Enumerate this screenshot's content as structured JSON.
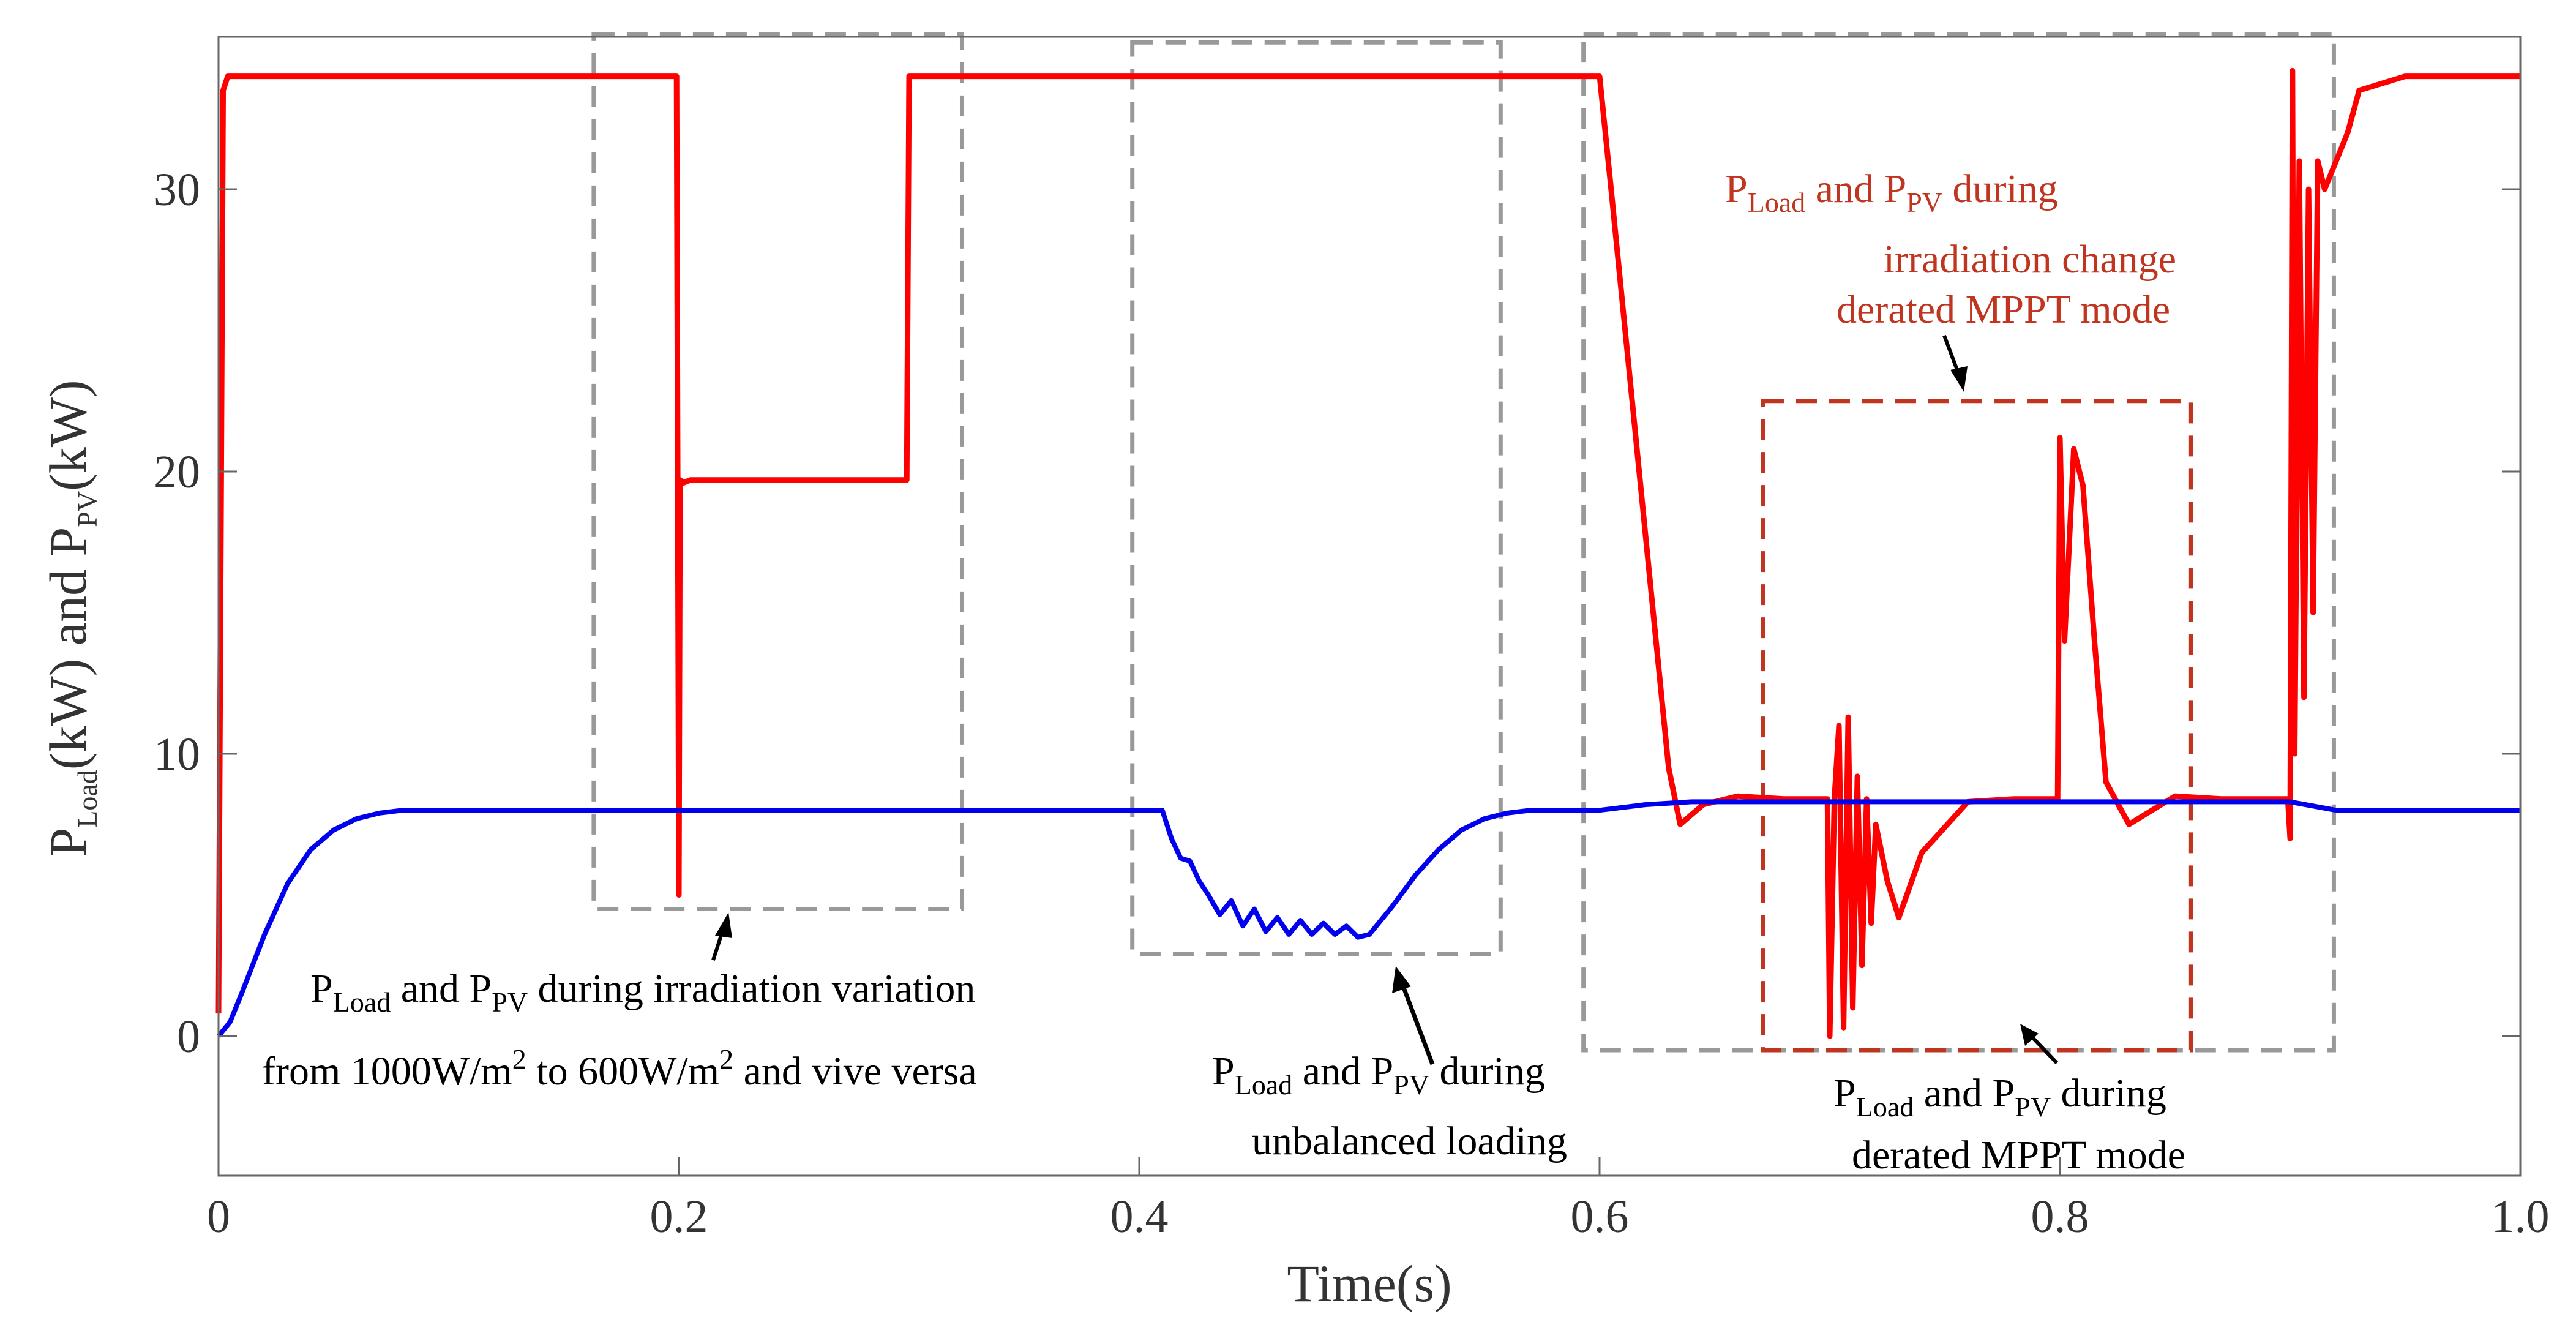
{
  "chart_data": {
    "type": "line",
    "title": "",
    "xlabel": "Time(s)",
    "ylabel": {
      "p1": "P",
      "s1": "Load",
      "m1": "(kW) and P",
      "s2": "PV",
      "m2": "(kW)"
    },
    "xlim": [
      0,
      1.0
    ],
    "ylim": [
      -5,
      34.5
    ],
    "xticks": [
      0,
      0.2,
      0.4,
      0.6,
      0.8,
      1.0
    ],
    "xtick_labels": [
      "0",
      "0.2",
      "0.4",
      "0.6",
      "0.8",
      "1.0"
    ],
    "yticks": [
      0,
      10,
      20,
      30
    ],
    "ytick_labels": [
      "0",
      "10",
      "20",
      "30"
    ],
    "grid": false,
    "series": [
      {
        "name": "P_PV",
        "color": "#ff0000",
        "x": [
          0,
          0.002,
          0.004,
          0.01,
          0.05,
          0.1,
          0.15,
          0.199,
          0.2,
          0.2005,
          0.202,
          0.205,
          0.25,
          0.299,
          0.3,
          0.35,
          0.4,
          0.45,
          0.5,
          0.55,
          0.599,
          0.6,
          0.605,
          0.63,
          0.635,
          0.645,
          0.66,
          0.68,
          0.699,
          0.7,
          0.702,
          0.704,
          0.706,
          0.708,
          0.71,
          0.712,
          0.714,
          0.716,
          0.718,
          0.72,
          0.725,
          0.73,
          0.74,
          0.76,
          0.78,
          0.799,
          0.8,
          0.802,
          0.806,
          0.81,
          0.815,
          0.82,
          0.83,
          0.84,
          0.85,
          0.87,
          0.899,
          0.9,
          0.901,
          0.902,
          0.904,
          0.906,
          0.908,
          0.91,
          0.912,
          0.915,
          0.92,
          0.925,
          0.93,
          0.95,
          1.0
        ],
        "values": [
          0.8,
          33.5,
          34.0,
          34.0,
          34.0,
          34.0,
          34.0,
          34.0,
          5.0,
          19.7,
          19.6,
          19.7,
          19.7,
          19.7,
          34.0,
          34.0,
          34.0,
          34.0,
          34.0,
          34.0,
          34.0,
          34.0,
          30.0,
          9.5,
          7.5,
          8.2,
          8.5,
          8.4,
          8.4,
          0,
          8.4,
          11.0,
          0.3,
          11.3,
          1.0,
          9.2,
          2.5,
          8.4,
          4.0,
          7.5,
          5.5,
          4.2,
          6.5,
          8.3,
          8.4,
          8.4,
          21.2,
          14.0,
          20.8,
          19.5,
          14.0,
          9.0,
          7.5,
          8.0,
          8.5,
          8.4,
          8.4,
          7.0,
          34.2,
          10.0,
          31.0,
          12.0,
          30.0,
          15.0,
          31.0,
          30.0,
          31.0,
          32.0,
          33.5,
          34.0,
          34.0
        ]
      },
      {
        "name": "P_Load",
        "color": "#0000ee",
        "x": [
          0,
          0.005,
          0.01,
          0.02,
          0.03,
          0.04,
          0.05,
          0.06,
          0.07,
          0.08,
          0.1,
          0.2,
          0.3,
          0.41,
          0.414,
          0.418,
          0.422,
          0.426,
          0.43,
          0.435,
          0.44,
          0.445,
          0.45,
          0.455,
          0.46,
          0.465,
          0.47,
          0.475,
          0.48,
          0.485,
          0.49,
          0.495,
          0.5,
          0.51,
          0.52,
          0.53,
          0.54,
          0.55,
          0.56,
          0.57,
          0.58,
          0.6,
          0.62,
          0.64,
          0.7,
          0.8,
          0.9,
          0.92,
          1.0
        ],
        "values": [
          0,
          0.5,
          1.5,
          3.6,
          5.4,
          6.6,
          7.3,
          7.7,
          7.9,
          8.0,
          8.0,
          8.0,
          8.0,
          8.0,
          7.0,
          6.3,
          6.2,
          5.5,
          5.0,
          4.3,
          4.8,
          3.9,
          4.5,
          3.7,
          4.2,
          3.6,
          4.1,
          3.6,
          4.0,
          3.6,
          3.9,
          3.5,
          3.6,
          4.6,
          5.7,
          6.6,
          7.3,
          7.7,
          7.9,
          8.0,
          8.0,
          8.0,
          8.2,
          8.3,
          8.3,
          8.3,
          8.3,
          8.0,
          8.0
        ]
      }
    ],
    "annotations": [
      {
        "id": "irradiation",
        "line1": {
          "a": "P",
          "b": "Load",
          "c": " and P",
          "d": "PV",
          "e": " during irradiation variation"
        },
        "line2": {
          "a": "from 1000W/m",
          "b": "2",
          "c": " to 600W/m",
          "d": "2",
          "e": " and vive versa"
        }
      },
      {
        "id": "unbalanced",
        "line1": {
          "a": "P",
          "b": "Load",
          "c": " and P",
          "d": "PV",
          "e": " during"
        },
        "line2": "unbalanced loading"
      },
      {
        "id": "derated",
        "line1": {
          "a": "P",
          "b": "Load",
          "c": " and P",
          "d": "PV",
          "e": " during"
        },
        "line2": "derated MPPT mode"
      },
      {
        "id": "irradiation-change",
        "color": "#c0351f",
        "line1": {
          "a": "P",
          "b": "Load",
          "c": " and P",
          "d": "PV",
          "e": " during"
        },
        "line2": "irradiation change",
        "line3": "derated MPPT mode"
      }
    ],
    "regions": [
      {
        "name": "irradiation-box",
        "color": "#999999",
        "x0": 0.163,
        "x1": 0.323,
        "y0": 4.5,
        "y1": 35.5
      },
      {
        "name": "unbalanced-box",
        "color": "#999999",
        "x0": 0.397,
        "x1": 0.557,
        "y0": 2.9,
        "y1": 35.2
      },
      {
        "name": "derated-box",
        "color": "#999999",
        "x0": 0.593,
        "x1": 0.919,
        "y0": -0.5,
        "y1": 35.5
      },
      {
        "name": "irradiation-change-box",
        "color": "#c0351f",
        "x0": 0.671,
        "x1": 0.857,
        "y0": -0.5,
        "y1": 22.5
      }
    ]
  }
}
